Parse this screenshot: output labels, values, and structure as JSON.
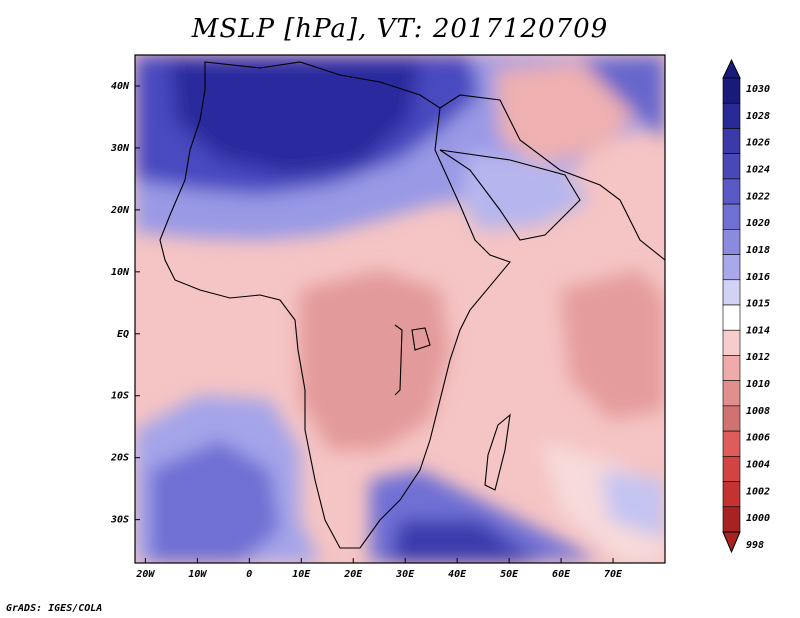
{
  "title": "MSLP [hPa], VT: 2017120709",
  "credit": "GrADS: IGES/COLA",
  "map": {
    "lat_labels": [
      "40N",
      "30N",
      "20N",
      "10N",
      "EQ",
      "10S",
      "20S",
      "30S"
    ],
    "lat_values": [
      40,
      30,
      20,
      10,
      0,
      -10,
      -20,
      -30
    ],
    "lon_labels": [
      "20W",
      "10W",
      "0",
      "10E",
      "20E",
      "30E",
      "40E",
      "50E",
      "60E",
      "70E"
    ],
    "lon_values": [
      -20,
      -10,
      0,
      10,
      20,
      30,
      40,
      50,
      60,
      70
    ],
    "lat_range": [
      -37,
      45
    ],
    "lon_range": [
      -22,
      80
    ]
  },
  "colorbar": {
    "labels": [
      "1030",
      "1028",
      "1026",
      "1024",
      "1022",
      "1020",
      "1018",
      "1016",
      "1015",
      "1014",
      "1012",
      "1010",
      "1008",
      "1006",
      "1004",
      "1002",
      "1000",
      "998"
    ],
    "colors": [
      "#1a1a7a",
      "#2a2a96",
      "#3a3aaa",
      "#4a48b8",
      "#5a5ac6",
      "#7070d2",
      "#8a8ade",
      "#a8a8ea",
      "#d2d2f4",
      "#ffffff",
      "#f7cccc",
      "#f0aaaa",
      "#e08e8e",
      "#d07272",
      "#de5c5c",
      "#d24444",
      "#c43232",
      "#a82222"
    ]
  }
}
